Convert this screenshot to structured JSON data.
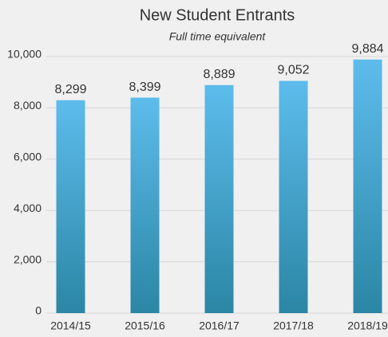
{
  "chart_data": {
    "type": "bar",
    "title": "New Student Entrants",
    "subtitle": "Full time equivalent",
    "categories": [
      "2014/15",
      "2015/16",
      "2016/17",
      "2017/18",
      "2018/19"
    ],
    "values": [
      8299,
      8399,
      8889,
      9052,
      9884
    ],
    "value_labels": [
      "8,299",
      "8,399",
      "8,889",
      "9,052",
      "9,884"
    ],
    "gradient": [
      "#5dbcec",
      "#2b86a5"
    ],
    "ylim": [
      0,
      10000
    ],
    "yticks": [
      0,
      {
        "value": 2000,
        "label": "2,000"
      },
      {
        "value": 4000,
        "label": "4,000"
      },
      {
        "value": 6000,
        "label": "6,000"
      },
      {
        "value": 8000,
        "label": "8,000"
      },
      {
        "value": 10000,
        "label": "10,000"
      }
    ],
    "grid": true
  }
}
